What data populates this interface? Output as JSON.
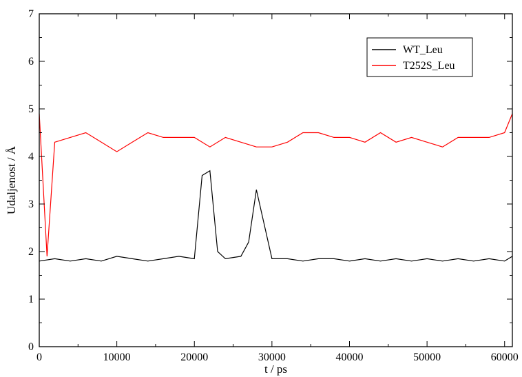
{
  "chart_data": {
    "type": "line",
    "title": "",
    "xlabel": "t / ps",
    "ylabel": "Udaljenost / Å",
    "xlim": [
      0,
      61000
    ],
    "ylim": [
      0,
      7
    ],
    "x_ticks": [
      0,
      10000,
      20000,
      30000,
      40000,
      50000,
      60000
    ],
    "x_tick_labels": [
      "0",
      "10000",
      "20000",
      "30000",
      "40000",
      "50000",
      "60000"
    ],
    "y_ticks": [
      0,
      1,
      2,
      3,
      4,
      5,
      6,
      7
    ],
    "y_tick_labels": [
      "0",
      "1",
      "2",
      "3",
      "4",
      "5",
      "6",
      "7"
    ],
    "grid": false,
    "legend_position": "top-right",
    "series": [
      {
        "name": "WT_Leu",
        "color": "#000000",
        "x": [
          0,
          2000,
          4000,
          6000,
          8000,
          10000,
          12000,
          14000,
          16000,
          18000,
          20000,
          21000,
          22000,
          23000,
          24000,
          26000,
          27000,
          28000,
          30000,
          32000,
          34000,
          36000,
          38000,
          40000,
          42000,
          44000,
          46000,
          48000,
          50000,
          52000,
          54000,
          56000,
          58000,
          60000,
          61000
        ],
        "y": [
          1.8,
          1.85,
          1.8,
          1.85,
          1.8,
          1.9,
          1.85,
          1.8,
          1.85,
          1.9,
          1.85,
          3.6,
          3.7,
          2.0,
          1.85,
          1.9,
          2.2,
          3.3,
          1.85,
          1.85,
          1.8,
          1.85,
          1.85,
          1.8,
          1.85,
          1.8,
          1.85,
          1.8,
          1.85,
          1.8,
          1.85,
          1.8,
          1.85,
          1.8,
          1.9
        ]
      },
      {
        "name": "T252S_Leu",
        "color": "#ff0000",
        "x": [
          0,
          1000,
          2000,
          4000,
          6000,
          8000,
          10000,
          12000,
          14000,
          16000,
          18000,
          20000,
          22000,
          24000,
          26000,
          28000,
          30000,
          32000,
          34000,
          36000,
          38000,
          40000,
          42000,
          44000,
          46000,
          48000,
          50000,
          52000,
          54000,
          56000,
          58000,
          60000,
          61000
        ],
        "y": [
          4.9,
          1.9,
          4.3,
          4.4,
          4.5,
          4.3,
          4.1,
          4.3,
          4.5,
          4.4,
          4.4,
          4.4,
          4.2,
          4.4,
          4.3,
          4.2,
          4.2,
          4.3,
          4.5,
          4.5,
          4.4,
          4.4,
          4.3,
          4.5,
          4.3,
          4.4,
          4.3,
          4.2,
          4.4,
          4.4,
          4.4,
          4.5,
          4.9
        ]
      }
    ]
  }
}
